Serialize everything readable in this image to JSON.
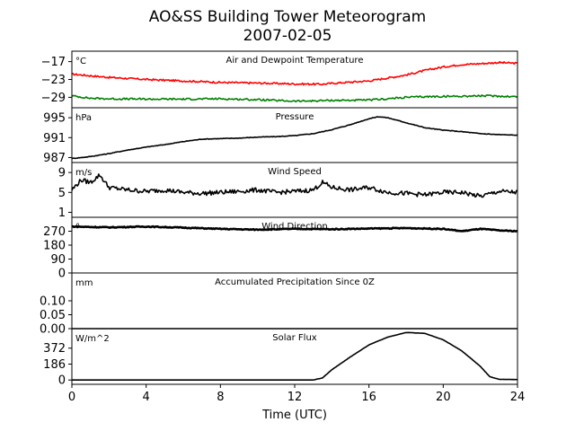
{
  "title": "AO&SS Building Tower Meteorogram",
  "subtitle": "2007-02-05",
  "xlabel": "Time (UTC)",
  "x_ticks": [
    0,
    4,
    8,
    12,
    16,
    20,
    24
  ],
  "chart_data": [
    {
      "type": "line",
      "title": "Air and Dewpoint Temperature",
      "units_label": "°C",
      "xlim": [
        0,
        24
      ],
      "ylim": [
        -32.5,
        -13.5
      ],
      "y_ticks": [
        -17,
        -23,
        -29
      ],
      "series": [
        {
          "color": "#ff0000",
          "x": [
            0,
            2,
            4,
            6,
            8,
            10,
            12,
            13.5,
            14,
            16,
            18,
            19,
            20,
            21,
            22,
            23,
            24
          ],
          "y": [
            -21.2,
            -22.3,
            -23.0,
            -23.5,
            -24.0,
            -24.2,
            -24.5,
            -24.6,
            -24.3,
            -23.5,
            -21.5,
            -20.0,
            -18.8,
            -18.0,
            -17.7,
            -17.3,
            -17.6
          ]
        },
        {
          "color": "#008000",
          "x": [
            0,
            1,
            2,
            4,
            6,
            8,
            10,
            12,
            13,
            14,
            15,
            16,
            17,
            18,
            19,
            20,
            21,
            22,
            23,
            24
          ],
          "y": [
            -28.5,
            -29.3,
            -29.5,
            -29.6,
            -29.6,
            -29.5,
            -29.8,
            -30.3,
            -30.2,
            -30.0,
            -30.0,
            -29.9,
            -29.5,
            -29.0,
            -28.8,
            -28.7,
            -28.6,
            -28.5,
            -28.6,
            -28.8
          ]
        }
      ]
    },
    {
      "type": "line",
      "title": "Pressure",
      "units_label": "hPa",
      "xlim": [
        0,
        24
      ],
      "ylim": [
        986,
        997
      ],
      "y_ticks": [
        995,
        991,
        987
      ],
      "series": [
        {
          "color": "#000000",
          "x": [
            0,
            1,
            2,
            3,
            4,
            5,
            6,
            7,
            8,
            9,
            10,
            11,
            12,
            13,
            14,
            15,
            16,
            16.5,
            17,
            18,
            19,
            20,
            21,
            22,
            23,
            24
          ],
          "y": [
            986.8,
            987.2,
            987.8,
            988.5,
            989.1,
            989.6,
            990.2,
            990.7,
            990.8,
            990.9,
            991.1,
            991.2,
            991.4,
            991.8,
            992.6,
            993.6,
            994.8,
            995.2,
            995.0,
            994.0,
            993.0,
            992.5,
            992.2,
            991.8,
            991.6,
            991.5
          ]
        }
      ]
    },
    {
      "type": "line",
      "title": "Wind Speed",
      "units_label": "m/s",
      "xlim": [
        0,
        24
      ],
      "ylim": [
        0,
        11
      ],
      "y_ticks": [
        9,
        5,
        1
      ],
      "series": [
        {
          "color": "#000000",
          "x": [
            0,
            0.5,
            1,
            1.5,
            2,
            3,
            4,
            5,
            6,
            7,
            8,
            9,
            10,
            11,
            12,
            13,
            13.5,
            14,
            15,
            16,
            17,
            18,
            19,
            20,
            21,
            22,
            23,
            24
          ],
          "y": [
            5.5,
            7.5,
            7.0,
            8.5,
            6.0,
            5.5,
            5.2,
            5.5,
            5.0,
            4.8,
            5.0,
            5.2,
            5.5,
            5.0,
            5.2,
            5.5,
            7.0,
            6.0,
            5.5,
            6.0,
            5.0,
            4.8,
            4.5,
            5.0,
            5.0,
            4.2,
            5.2,
            5.0
          ]
        }
      ]
    },
    {
      "type": "line",
      "title": "Wind Direction",
      "units_label": "°",
      "xlim": [
        0,
        24
      ],
      "ylim": [
        0,
        360
      ],
      "y_ticks": [
        270,
        180,
        90,
        0
      ],
      "series": [
        {
          "color": "#000000",
          "x": [
            0,
            2,
            4,
            6,
            8,
            10,
            12,
            14,
            16,
            18,
            20,
            21,
            22,
            23,
            24
          ],
          "y": [
            300,
            295,
            300,
            293,
            285,
            280,
            285,
            283,
            287,
            290,
            285,
            270,
            285,
            275,
            270
          ]
        }
      ]
    },
    {
      "type": "line",
      "title": "Accumulated Precipitation Since 0Z",
      "units_label": "mm",
      "xlim": [
        0,
        24
      ],
      "ylim": [
        0,
        0.2
      ],
      "y_ticks": [
        0.1,
        0.05,
        0.0
      ],
      "y_tick_labels": [
        "0.10",
        "0.05",
        "0.00"
      ],
      "series": [
        {
          "color": "#000000",
          "x": [
            0,
            24
          ],
          "y": [
            0,
            0
          ]
        }
      ]
    },
    {
      "type": "line",
      "title": "Solar Flux",
      "units_label": "W/m^2",
      "xlim": [
        0,
        24
      ],
      "ylim": [
        -50,
        600
      ],
      "y_ticks": [
        372,
        186,
        0
      ],
      "series": [
        {
          "color": "#000000",
          "x": [
            0,
            13,
            13.5,
            14,
            15,
            16,
            17,
            18,
            19,
            20,
            21,
            22,
            22.5,
            23,
            24
          ],
          "y": [
            0,
            0,
            25,
            120,
            270,
            410,
            500,
            555,
            545,
            470,
            340,
            160,
            40,
            8,
            5
          ]
        }
      ]
    }
  ]
}
